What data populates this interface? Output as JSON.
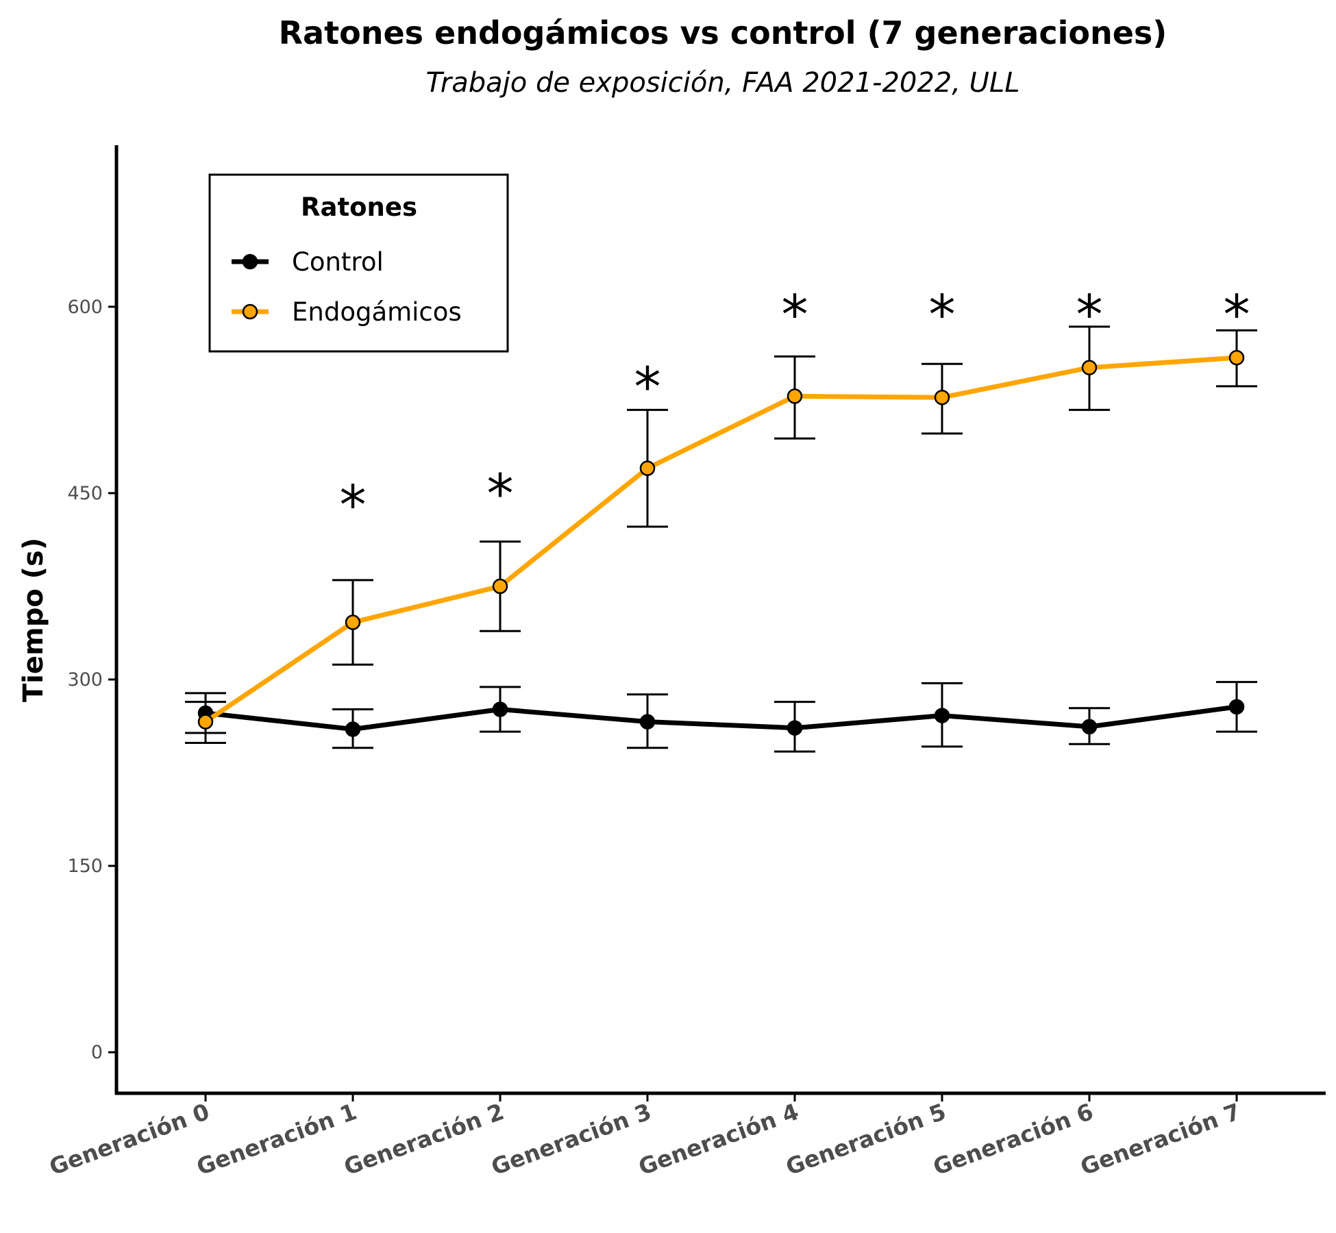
{
  "chart_data": {
    "type": "line",
    "title": "Ratones endogámicos vs control (7 generaciones)",
    "subtitle": "Trabajo de exposición, FAA 2021-2022, ULL",
    "xlabel": "",
    "ylabel": "Tiempo (s)",
    "categories": [
      "Generación 0",
      "Generación 1",
      "Generación 2",
      "Generación 3",
      "Generación 4",
      "Generación 5",
      "Generación 6",
      "Generación 7"
    ],
    "yticks": [
      0,
      150,
      300,
      450,
      600
    ],
    "ylim": [
      -33,
      730
    ],
    "grid": false,
    "legend": {
      "title": "Ratones",
      "position": "top-left"
    },
    "significance_marker": "*",
    "significant_indices": [
      1,
      2,
      3,
      4,
      5,
      6,
      7
    ],
    "marker_y": [
      452,
      461,
      547,
      605,
      605,
      605,
      605
    ],
    "series": [
      {
        "name": "Control",
        "color": "#000000",
        "marker_fill": "#000000",
        "values": [
          273,
          260,
          276,
          266,
          261,
          271,
          262,
          278
        ],
        "error_low": [
          257,
          245,
          258,
          245,
          242,
          246,
          248,
          258
        ],
        "error_high": [
          289,
          276,
          294,
          288,
          282,
          297,
          277,
          298
        ]
      },
      {
        "name": "Endogámicos",
        "color": "#FFA500",
        "marker_fill": "#FFA500",
        "values": [
          266,
          346,
          375,
          470,
          528,
          527,
          551,
          559
        ],
        "error_low": [
          249,
          312,
          339,
          423,
          494,
          498,
          517,
          536
        ],
        "error_high": [
          282,
          380,
          411,
          517,
          560,
          554,
          584,
          581
        ]
      }
    ]
  }
}
